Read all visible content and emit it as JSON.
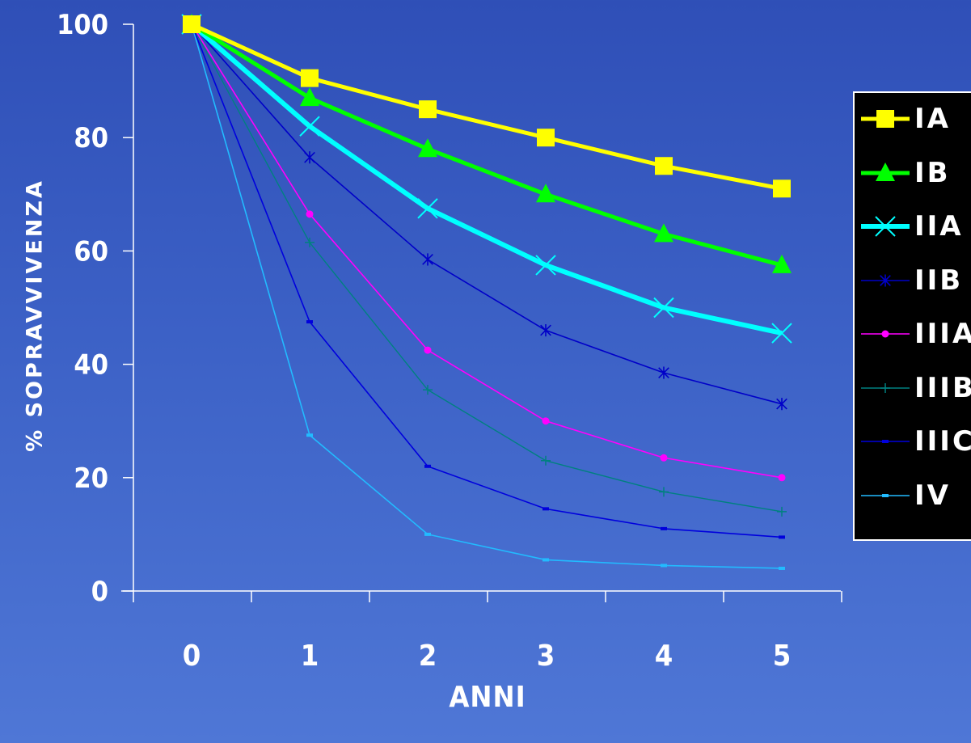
{
  "chart_data": {
    "type": "line",
    "xlabel": "ANNI",
    "ylabel": "% SOPRAVVIVENZA",
    "x": [
      0,
      1,
      2,
      3,
      4,
      5
    ],
    "x_tick_labels": [
      "0",
      "1",
      "2",
      "3",
      "4",
      "5"
    ],
    "y_tick_labels": [
      "0",
      "20",
      "40",
      "60",
      "80",
      "100"
    ],
    "ylim": [
      0,
      100
    ],
    "grid": false,
    "legend_position": "right",
    "series": [
      {
        "name": "IA",
        "values": [
          100,
          90.5,
          85,
          80,
          75,
          71
        ],
        "color": "#ffff00",
        "marker": "square"
      },
      {
        "name": "IB",
        "values": [
          100,
          87,
          78,
          70,
          63,
          57.5
        ],
        "color": "#00ff00",
        "marker": "triangle"
      },
      {
        "name": "IIA",
        "values": [
          100,
          82,
          67.5,
          57.5,
          50,
          45.5
        ],
        "color": "#00ffff",
        "marker": "x"
      },
      {
        "name": "IIB",
        "values": [
          100,
          76.5,
          58.5,
          46,
          38.5,
          33
        ],
        "color": "#0000c8",
        "marker": "star"
      },
      {
        "name": "IIIA",
        "values": [
          100,
          66.5,
          42.5,
          30,
          23.5,
          20
        ],
        "color": "#ff00ff",
        "marker": "circle"
      },
      {
        "name": "IIIB",
        "values": [
          100,
          61.5,
          35.5,
          23,
          17.5,
          14
        ],
        "color": "#008080",
        "marker": "plus"
      },
      {
        "name": "IIIC",
        "values": [
          100,
          47.5,
          22,
          14.5,
          11,
          9.5
        ],
        "color": "#0000dd",
        "marker": "dash"
      },
      {
        "name": "IV",
        "values": [
          100,
          27.5,
          10,
          5.5,
          4.5,
          4
        ],
        "color": "#22bbff",
        "marker": "dash"
      }
    ]
  }
}
